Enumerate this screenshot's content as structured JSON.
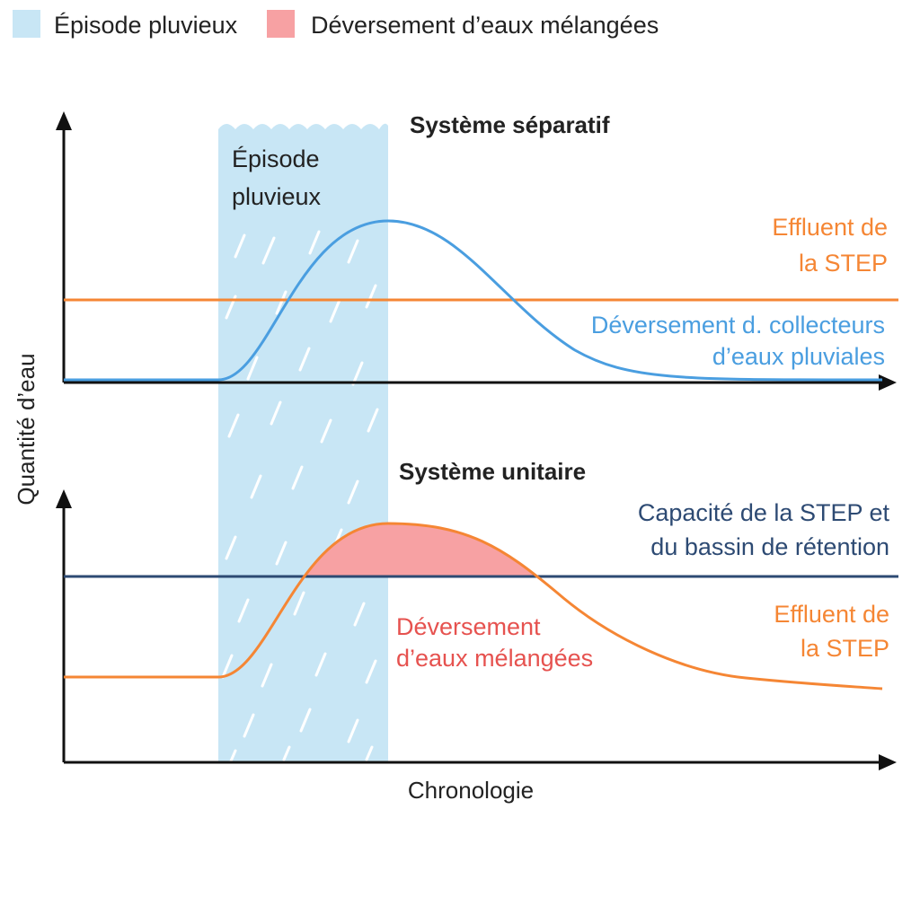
{
  "legend": {
    "rain_label": "Épisode pluvieux",
    "overflow_label": "Déversement d’eaux mélangées"
  },
  "colors": {
    "rain": "#c8e6f5",
    "overflow": "#f7a1a3",
    "blue_line": "#4a9ee0",
    "orange_line": "#f58634",
    "navy_line": "#2d4a73",
    "red_text": "#e6524f",
    "axis": "#111111"
  },
  "axes": {
    "y_label": "Quantité d’eau",
    "x_label": "Chronologie"
  },
  "rain_band": {
    "label_line1": "Épisode",
    "label_line2": "pluvieux"
  },
  "top_panel": {
    "title": "Système séparatif",
    "effluent_line1": "Effluent de",
    "effluent_line2": "la STEP",
    "stormwater_line1": "Déversement d. collecteurs",
    "stormwater_line2": "d’eaux pluviales"
  },
  "bottom_panel": {
    "title": "Système unitaire",
    "capacity_line1": "Capacité de la STEP et",
    "capacity_line2": "du bassin de rétention",
    "effluent_line1": "Effluent de",
    "effluent_line2": "la STEP",
    "overflow_line1": "Déversement",
    "overflow_line2": "d’eaux mélangées"
  }
}
